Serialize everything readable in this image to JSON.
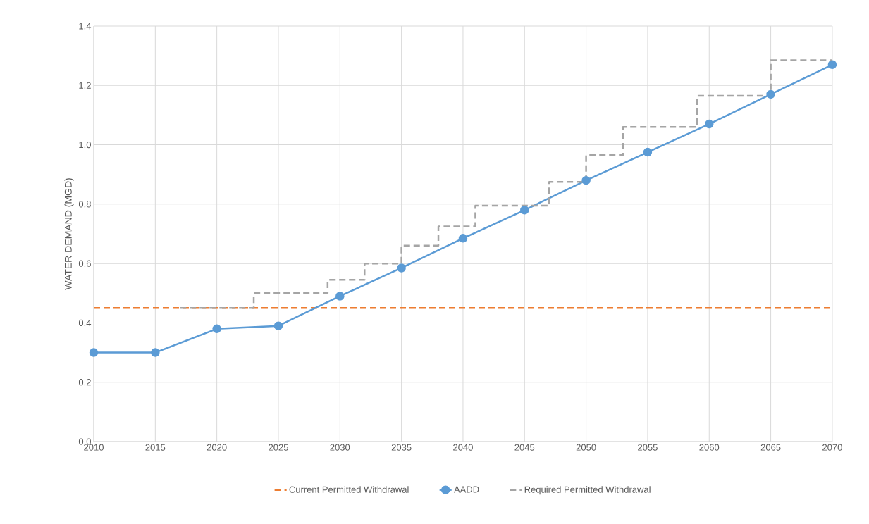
{
  "chart_data": {
    "type": "line",
    "ylabel": "WATER DEMAND (MGD)",
    "xlim": [
      2010,
      2070
    ],
    "xticks": [
      2010,
      2015,
      2020,
      2025,
      2030,
      2035,
      2040,
      2045,
      2050,
      2055,
      2060,
      2065,
      2070
    ],
    "ylim": [
      0,
      1.4
    ],
    "yticks": [
      {
        "value": 0,
        "label": "0.0"
      },
      {
        "value": 0.2,
        "label": "0.2"
      },
      {
        "value": 0.4,
        "label": "0.4"
      },
      {
        "value": 0.6,
        "label": "0.6"
      },
      {
        "value": 0.8,
        "label": "0.8"
      },
      {
        "value": 1.0,
        "label": "1.0"
      },
      {
        "value": 1.2,
        "label": "1.2"
      },
      {
        "value": 1.4,
        "label": "1.4"
      }
    ],
    "grid": true,
    "legend": "bottom",
    "ref_lines": [
      {
        "axis": "y",
        "value": 0.45,
        "label": "Current Permitted Withdrawal",
        "color": "#ed7d31",
        "line_style": "dashed"
      }
    ],
    "series": [
      {
        "name": "AADD",
        "color": "#5b9bd5",
        "marker": "circle",
        "line_style": "solid",
        "x": [
          2010,
          2015,
          2020,
          2025,
          2030,
          2035,
          2040,
          2045,
          2050,
          2055,
          2060,
          2065,
          2070
        ],
        "values": [
          0.3,
          0.3,
          0.38,
          0.39,
          0.49,
          0.585,
          0.685,
          0.78,
          0.88,
          0.975,
          1.07,
          1.17,
          1.27
        ]
      },
      {
        "name": "Required Permitted Withdrawal",
        "type": "step",
        "color": "#a5a5a5",
        "marker": "none",
        "line_style": "dashed",
        "x": [
          2017,
          2023,
          2029,
          2032,
          2035,
          2038,
          2041,
          2047,
          2050,
          2053,
          2059,
          2065,
          2070
        ],
        "values": [
          0.45,
          0.5,
          0.545,
          0.6,
          0.66,
          0.725,
          0.795,
          0.875,
          0.965,
          1.06,
          1.165,
          1.285,
          1.285
        ]
      }
    ]
  }
}
